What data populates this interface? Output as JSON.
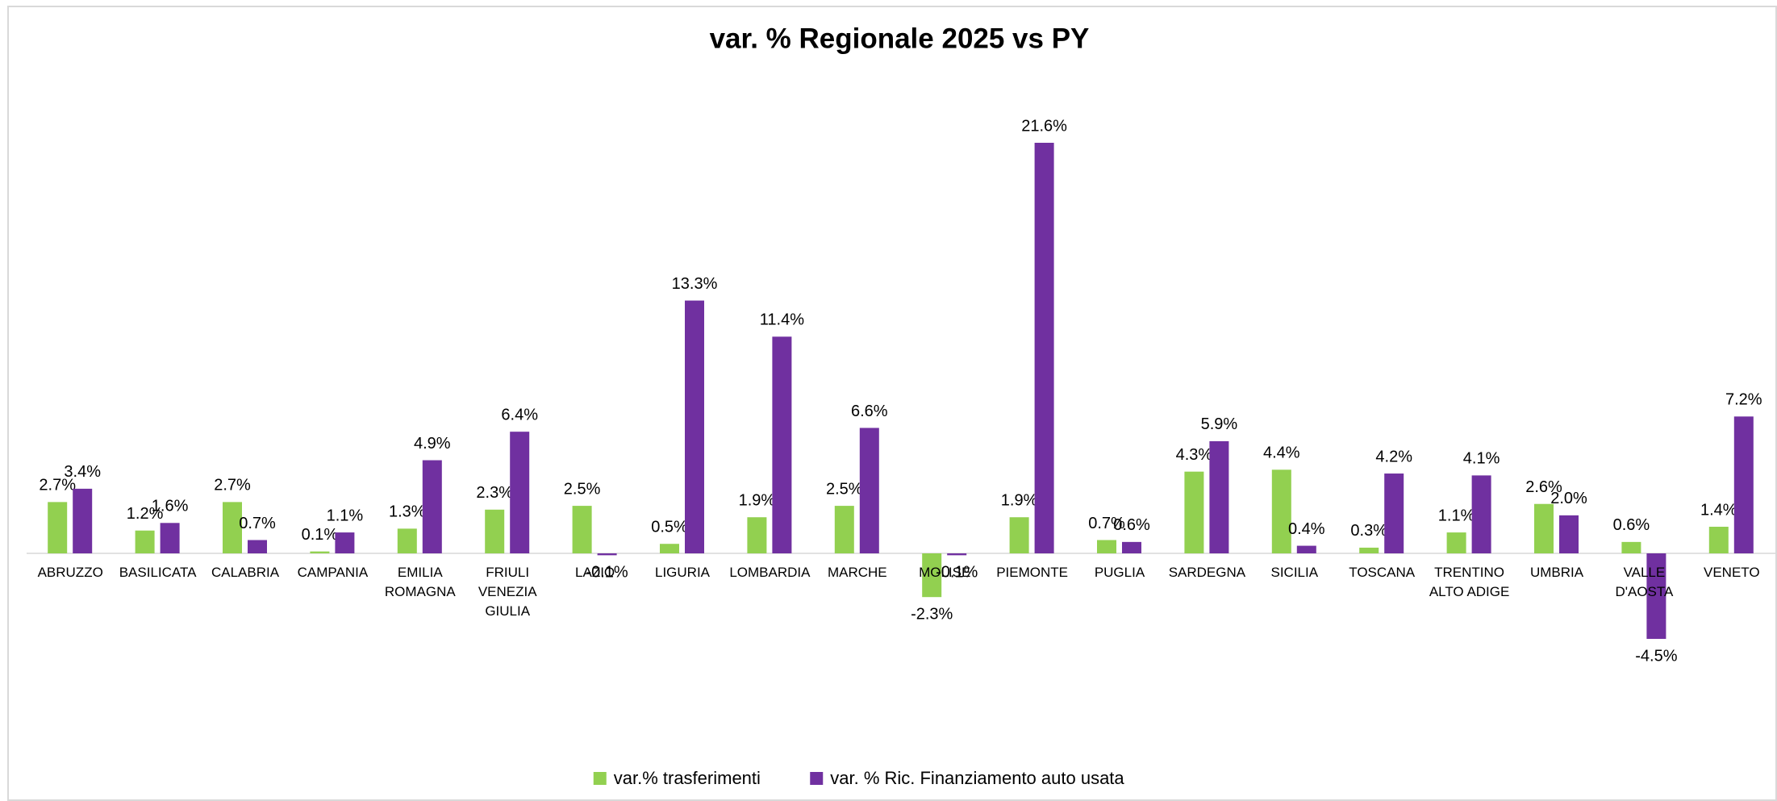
{
  "chart_data": {
    "type": "bar",
    "title": "var. % Regionale 2025 vs PY",
    "categories": [
      "ABRUZZO",
      "BASILICATA",
      "CALABRIA",
      "CAMPANIA",
      "EMILIA ROMAGNA",
      "FRIULI VENEZIA GIULIA",
      "LAZIO",
      "LIGURIA",
      "LOMBARDIA",
      "MARCHE",
      "MOLISE",
      "PIEMONTE",
      "PUGLIA",
      "SARDEGNA",
      "SICILIA",
      "TOSCANA",
      "TRENTINO ALTO ADIGE",
      "UMBRIA",
      "VALLE D'AOSTA",
      "VENETO"
    ],
    "series": [
      {
        "name": "var.% trasferimenti",
        "color": "#92d050",
        "values": [
          2.7,
          1.2,
          2.7,
          0.1,
          1.3,
          2.3,
          2.5,
          0.5,
          1.9,
          2.5,
          -2.3,
          1.9,
          0.7,
          4.3,
          4.4,
          0.3,
          1.1,
          2.6,
          0.6,
          1.4
        ],
        "value_labels": [
          "2.7%",
          "1.2%",
          "2.7%",
          "0.1%",
          "1.3%",
          "2.3%",
          "2.5%",
          "0.5%",
          "1.9%",
          "2.5%",
          "-2.3%",
          "1.9%",
          "0.7%",
          "4.3%",
          "4.4%",
          "0.3%",
          "1.1%",
          "2.6%",
          "0.6%",
          "1.4%"
        ]
      },
      {
        "name": "var. % Ric. Finanziamento auto usata",
        "color": "#7030a0",
        "values": [
          3.4,
          1.6,
          0.7,
          1.1,
          4.9,
          6.4,
          -0.1,
          13.3,
          11.4,
          6.6,
          -0.1,
          21.6,
          0.6,
          5.9,
          0.4,
          4.2,
          4.1,
          2.0,
          -4.5,
          7.2
        ],
        "value_labels": [
          "3.4%",
          "1.6%",
          "0.7%",
          "1.1%",
          "4.9%",
          "6.4%",
          "-0.1%",
          "13.3%",
          "11.4%",
          "6.6%",
          "-0.1%",
          "21.6%",
          "0.6%",
          "5.9%",
          "0.4%",
          "4.2%",
          "4.1%",
          "2.0%",
          "-4.5%",
          "7.2%"
        ]
      }
    ],
    "legend": "bottom"
  }
}
